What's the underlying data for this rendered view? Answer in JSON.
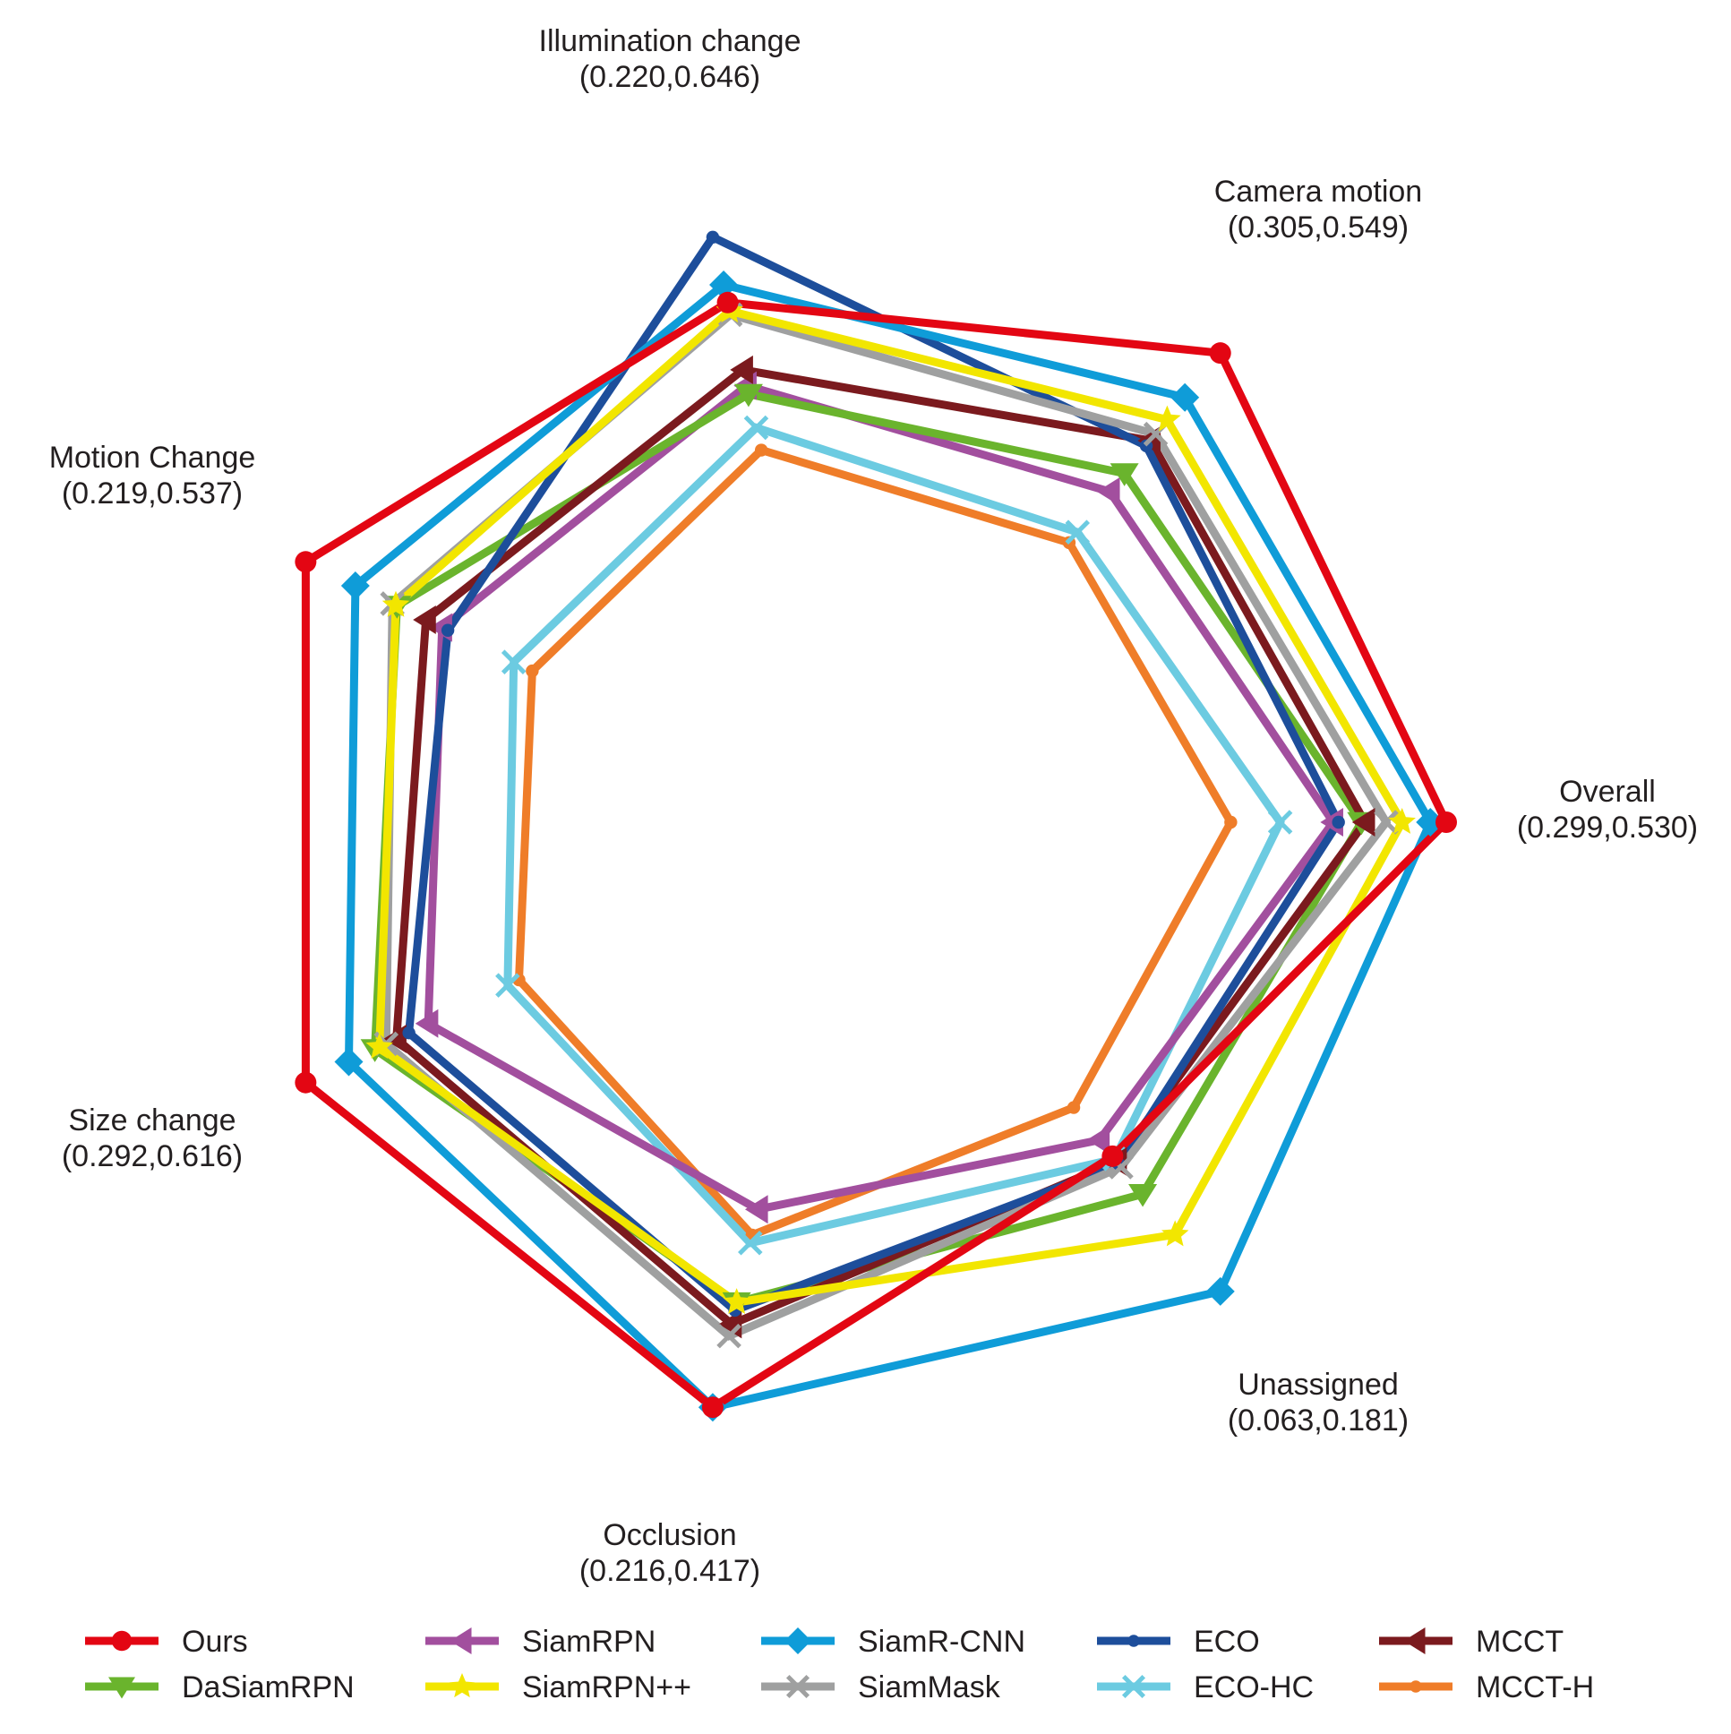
{
  "chart_data": {
    "type": "radar",
    "title": "",
    "axes": [
      {
        "name": "Overall",
        "range_label": "(0.299,0.530)",
        "min": 0.299,
        "max": 0.53
      },
      {
        "name": "Camera motion",
        "range_label": "(0.305,0.549)",
        "min": 0.305,
        "max": 0.549
      },
      {
        "name": "Illumination change",
        "range_label": "(0.220,0.646)",
        "min": 0.22,
        "max": 0.646
      },
      {
        "name": "Motion Change",
        "range_label": "(0.219,0.537)",
        "min": 0.219,
        "max": 0.537
      },
      {
        "name": "Size change",
        "range_label": "(0.292,0.616)",
        "min": 0.292,
        "max": 0.616
      },
      {
        "name": "Occlusion",
        "range_label": "(0.216,0.417)",
        "min": 0.216,
        "max": 0.417
      },
      {
        "name": "Unassigned",
        "range_label": "(0.063,0.181)",
        "min": 0.063,
        "max": 0.181
      }
    ],
    "series": [
      {
        "name": "Ours",
        "color": "#e30613",
        "marker": "circle",
        "values": [
          0.53,
          0.549,
          0.576,
          0.537,
          0.616,
          0.417,
          0.131
        ]
      },
      {
        "name": "DaSiamRPN",
        "color": "#6ab42d",
        "marker": "triangle-down",
        "values": [
          0.482,
          0.457,
          0.478,
          0.458,
          0.555,
          0.364,
          0.145
        ]
      },
      {
        "name": "SiamRPN",
        "color": "#a24f9e",
        "marker": "triangle-left",
        "values": [
          0.466,
          0.443,
          0.487,
          0.419,
          0.508,
          0.317,
          0.125
        ]
      },
      {
        "name": "SiamRPN++",
        "color": "#f2e600",
        "marker": "star",
        "values": [
          0.505,
          0.498,
          0.567,
          0.459,
          0.551,
          0.364,
          0.16
        ]
      },
      {
        "name": "SiamR-CNN",
        "color": "#0f9cd8",
        "marker": "diamond",
        "values": [
          0.521,
          0.515,
          0.595,
          0.494,
          0.578,
          0.417,
          0.181
        ]
      },
      {
        "name": "SiamMask",
        "color": "#9fa0a0",
        "marker": "x",
        "values": [
          0.496,
          0.487,
          0.563,
          0.462,
          0.545,
          0.381,
          0.135
        ]
      },
      {
        "name": "ECO",
        "color": "#1d4e9b",
        "marker": "dot",
        "values": [
          0.469,
          0.478,
          0.646,
          0.414,
          0.525,
          0.368,
          0.134
        ]
      },
      {
        "name": "ECO-HC",
        "color": "#6ccbe1",
        "marker": "x",
        "values": [
          0.436,
          0.412,
          0.442,
          0.357,
          0.438,
          0.334,
          0.132
        ]
      },
      {
        "name": "MCCT",
        "color": "#7b1a1e",
        "marker": "triangle-left",
        "values": [
          0.484,
          0.482,
          0.504,
          0.433,
          0.536,
          0.375,
          0.133
        ]
      },
      {
        "name": "MCCT-H",
        "color": "#ef7d29",
        "marker": "dot",
        "values": [
          0.408,
          0.404,
          0.418,
          0.341,
          0.428,
          0.33,
          0.113
        ]
      }
    ],
    "legend": {
      "position": "bottom",
      "columns": 5
    },
    "grid": false
  }
}
